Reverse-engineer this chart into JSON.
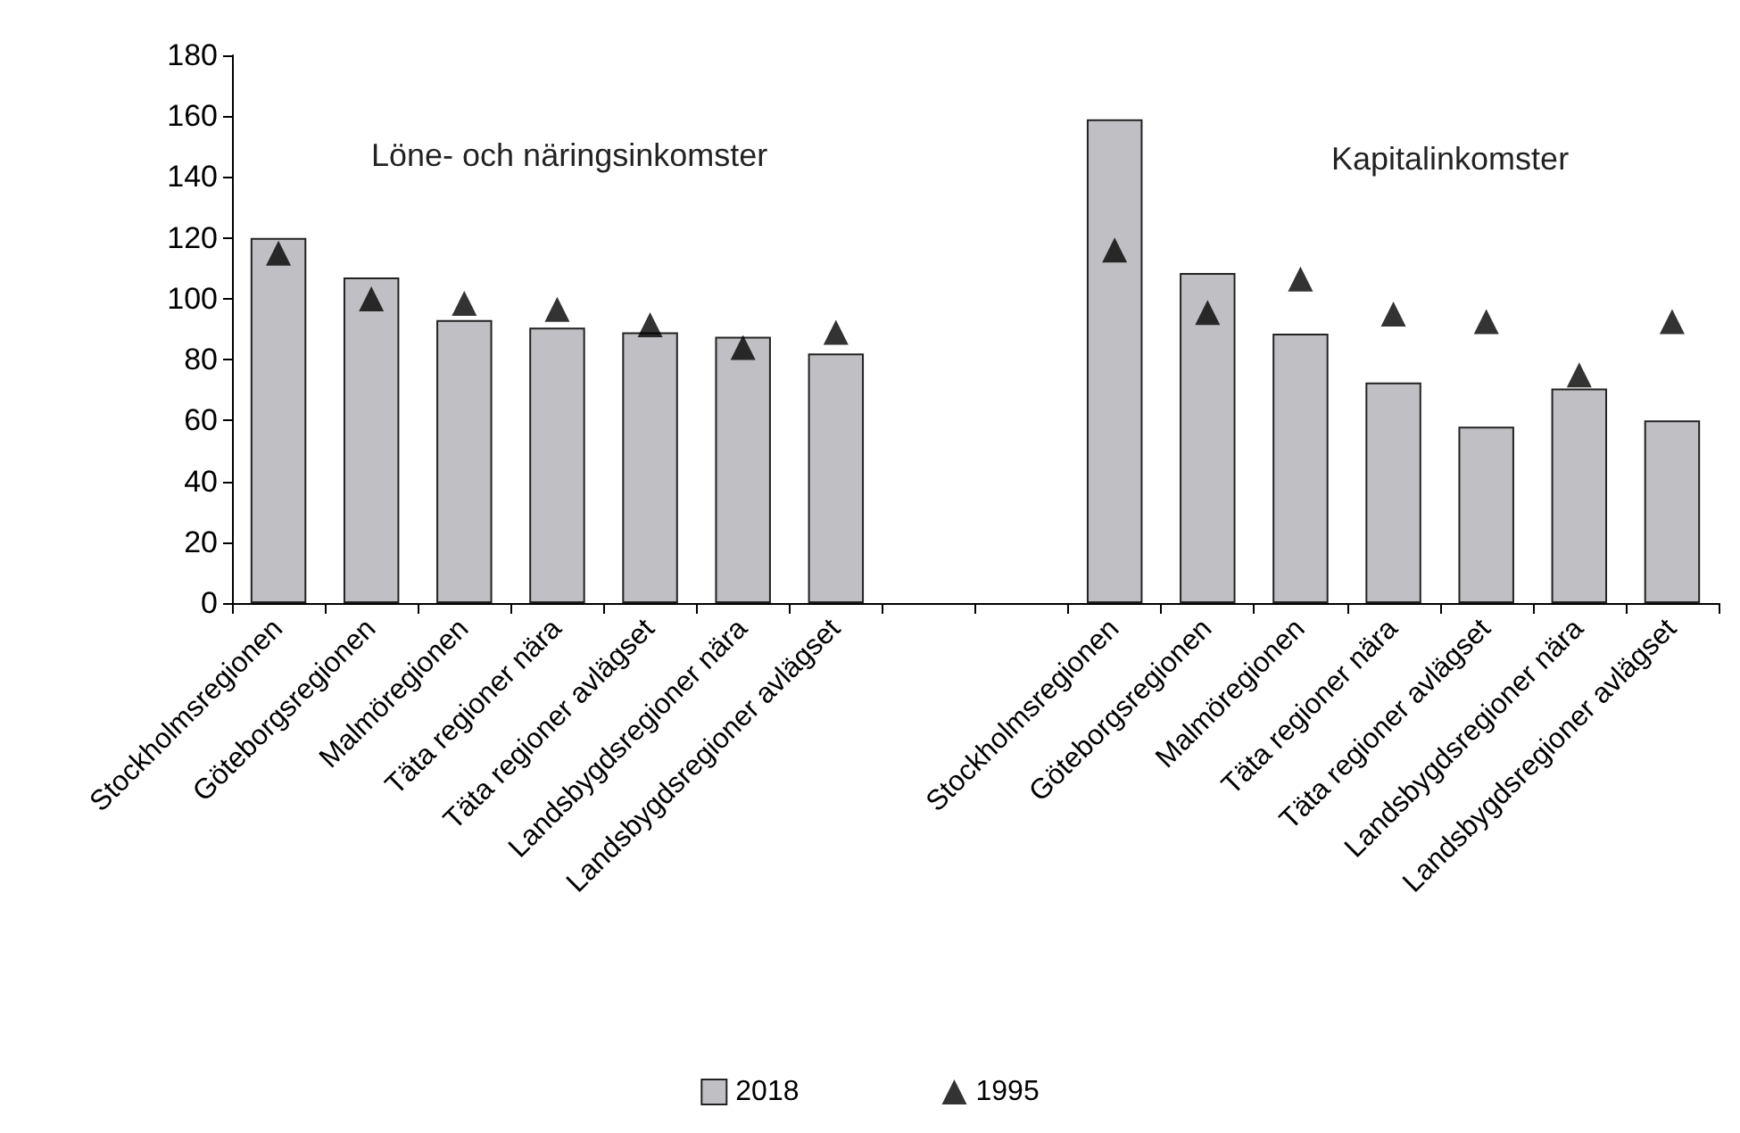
{
  "chart_data": {
    "type": "bar",
    "categories": [
      "Stockholmsregionen",
      "Göteborgsregionen",
      "Malmöregionen",
      "Täta regioner nära",
      "Täta regioner avlägset",
      "Landsbygdsregioner nära",
      "Landsbygdsregioner avlägset",
      null,
      null,
      "Stockholmsregionen",
      "Göteborgsregionen",
      "Malmöregionen",
      "Täta regioner nära",
      "Täta regioner avlägset",
      "Landsbygdsregioner nära",
      "Landsbygdsregioner avlägset"
    ],
    "series": [
      {
        "name": "2018",
        "color": "#c0c0c4",
        "values": [
          120,
          107,
          93,
          90.5,
          89,
          87.5,
          82,
          null,
          null,
          159,
          108.5,
          88.5,
          72.5,
          58,
          70.5,
          60
        ]
      },
      {
        "name": "1995",
        "type": "scatter",
        "color": "#000000",
        "marker": "triangle",
        "values": [
          115,
          100,
          98.5,
          96.5,
          91.5,
          84,
          89,
          null,
          null,
          116,
          95.5,
          106.5,
          95,
          92.5,
          75,
          92.5
        ]
      }
    ],
    "ylim": [
      0,
      180
    ],
    "yticks": [
      0,
      20,
      40,
      60,
      80,
      100,
      120,
      140,
      160,
      180
    ],
    "grid": false,
    "legend": "bottom",
    "annotations": [
      "Löne- och näringsinkomster",
      "Kapitalinkomster"
    ]
  }
}
